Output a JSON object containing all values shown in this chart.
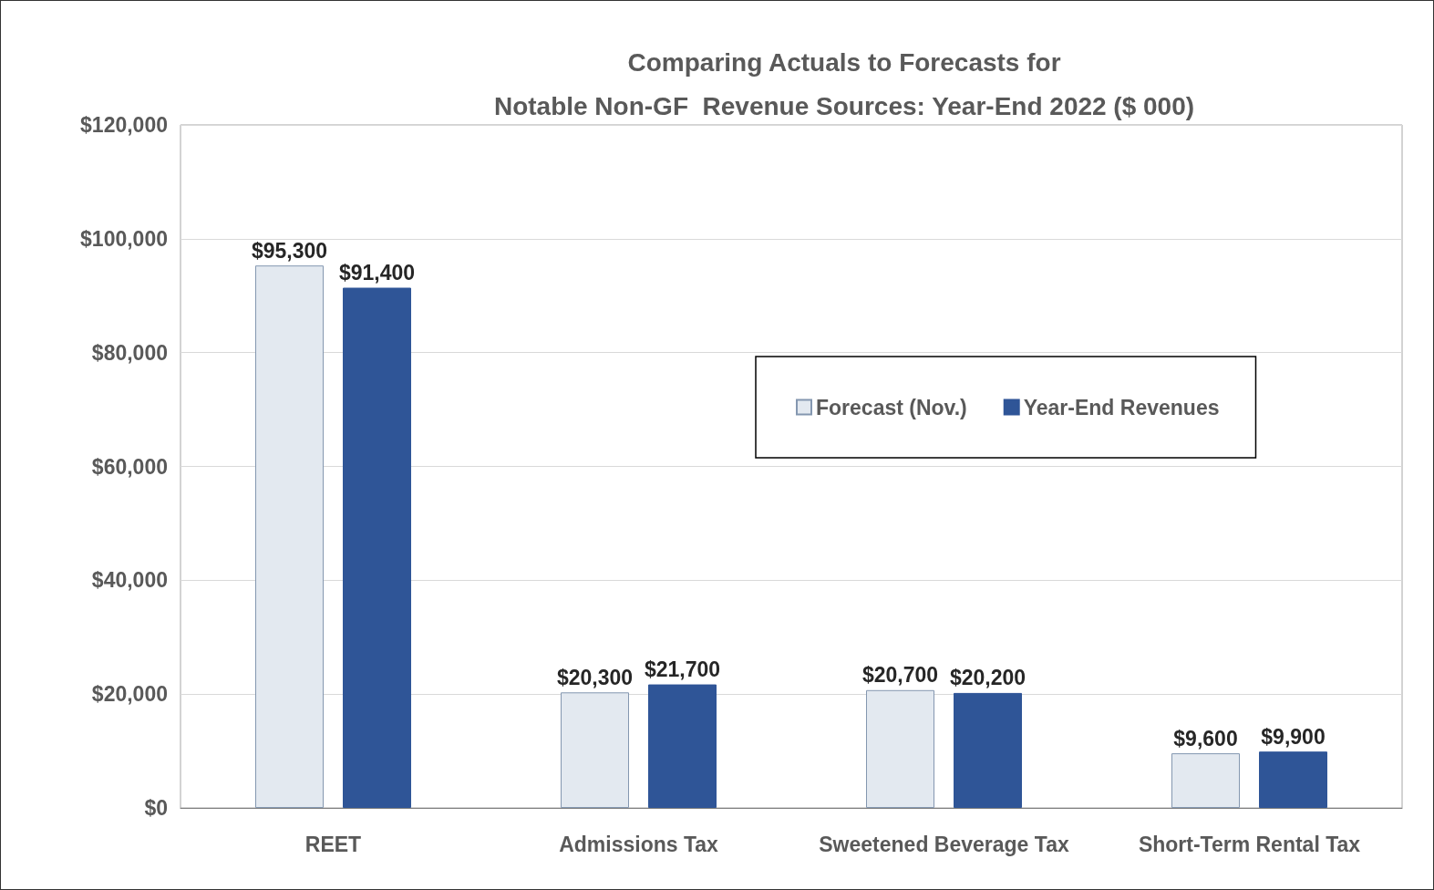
{
  "chart_data": {
    "type": "bar",
    "title": "Comparing Actuals to Forecasts for\nNotable Non-GF  Revenue Sources: Year-End 2022 ($ 000)",
    "categories": [
      "REET",
      "Admissions Tax",
      "Sweetened Beverage Tax",
      "Short-Term Rental Tax"
    ],
    "series": [
      {
        "name": "Forecast (Nov.)",
        "color": "#e3e9f0",
        "values": [
          95300,
          20300,
          20700,
          9600
        ],
        "value_labels": [
          "$95,300",
          "$20,300",
          "$20,700",
          "$9,600"
        ]
      },
      {
        "name": "Year-End Revenues",
        "color": "#2f5597",
        "values": [
          91400,
          21700,
          20200,
          9900
        ],
        "value_labels": [
          "$91,400",
          "$21,700",
          "$20,200",
          "$9,900"
        ]
      }
    ],
    "ylim": [
      0,
      120000
    ],
    "yticks": [
      {
        "value": 0,
        "label": "$0"
      },
      {
        "value": 20000,
        "label": "$20,000"
      },
      {
        "value": 40000,
        "label": "$40,000"
      },
      {
        "value": 60000,
        "label": "$60,000"
      },
      {
        "value": 80000,
        "label": "$80,000"
      },
      {
        "value": 100000,
        "label": "$100,000"
      },
      {
        "value": 120000,
        "label": "$120,000"
      }
    ],
    "grid": "y",
    "legend": "right"
  }
}
